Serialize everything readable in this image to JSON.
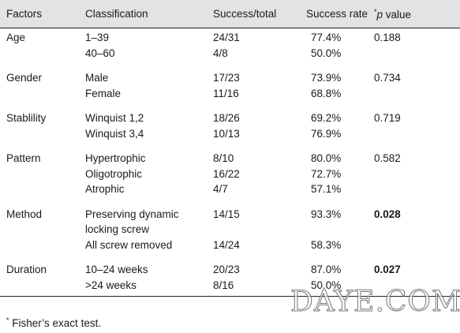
{
  "header": {
    "factors": "Factors",
    "classification": "Classification",
    "success_total": "Success/total",
    "success_rate": "Success rate",
    "p_value": {
      "mark": "*",
      "symbol": "p",
      "text": "value"
    }
  },
  "groups": [
    {
      "factor": "Age",
      "p_value": "0.188",
      "significant": false,
      "rows": [
        {
          "classification": "1–39",
          "success_total": "24/31",
          "success_rate": "77.4%"
        },
        {
          "classification": "40–60",
          "success_total": "4/8",
          "success_rate": "50.0%"
        }
      ]
    },
    {
      "factor": "Gender",
      "p_value": "0.734",
      "significant": false,
      "rows": [
        {
          "classification": "Male",
          "success_total": "17/23",
          "success_rate": "73.9%"
        },
        {
          "classification": "Female",
          "success_total": "11/16",
          "success_rate": "68.8%"
        }
      ]
    },
    {
      "factor": "Stablility",
      "p_value": "0.719",
      "significant": false,
      "rows": [
        {
          "classification": "Winquist 1,2",
          "success_total": "18/26",
          "success_rate": "69.2%"
        },
        {
          "classification": "Winquist 3,4",
          "success_total": "10/13",
          "success_rate": "76.9%"
        }
      ]
    },
    {
      "factor": "Pattern",
      "p_value": "0.582",
      "significant": false,
      "rows": [
        {
          "classification": "Hypertrophic",
          "success_total": "8/10",
          "success_rate": "80.0%"
        },
        {
          "classification": "Oligotrophic",
          "success_total": "16/22",
          "success_rate": "72.7%"
        },
        {
          "classification": "Atrophic",
          "success_total": "4/7",
          "success_rate": "57.1%"
        }
      ]
    },
    {
      "factor": "Method",
      "p_value": "0.028",
      "significant": true,
      "rows": [
        {
          "classification": "Preserving dynamic locking screw",
          "success_total": "14/15",
          "success_rate": "93.3%"
        },
        {
          "classification": "All screw removed",
          "success_total": "14/24",
          "success_rate": "58.3%"
        }
      ]
    },
    {
      "factor": "Duration",
      "p_value": "0.027",
      "significant": true,
      "rows": [
        {
          "classification": "10–24 weeks",
          "success_total": "20/23",
          "success_rate": "87.0%"
        },
        {
          "classification": ">24 weeks",
          "success_total": "8/16",
          "success_rate": "50.0%"
        }
      ]
    }
  ],
  "footnote": {
    "mark": "*",
    "text": "Fisher’s exact test."
  },
  "watermark": "DAYE.COM"
}
